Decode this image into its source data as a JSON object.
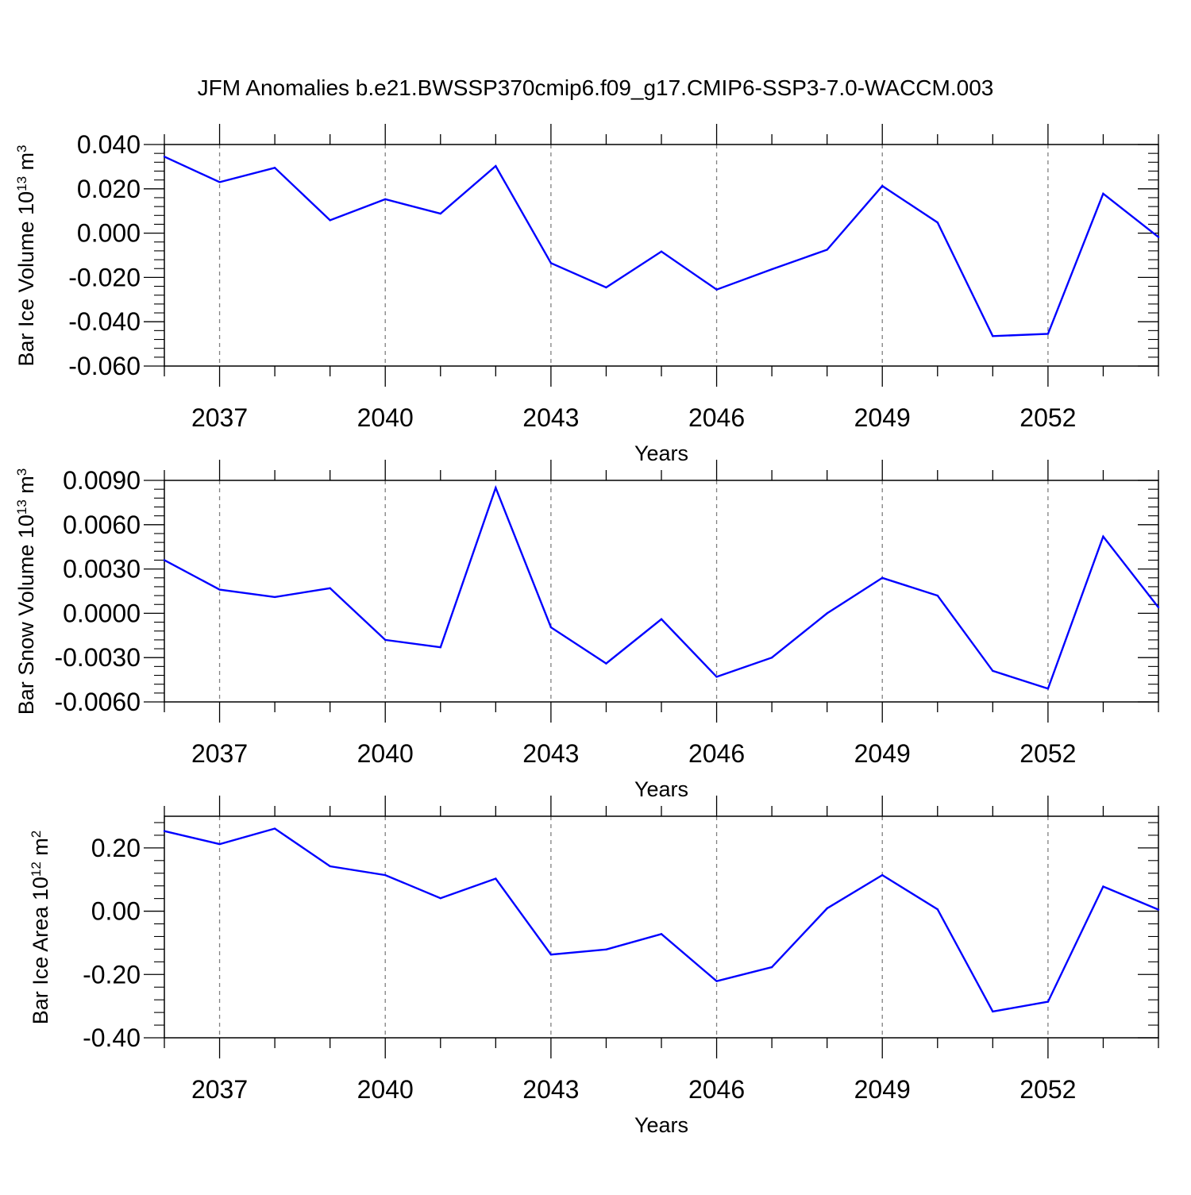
{
  "title": "JFM Anomalies b.e21.BWSSP370cmip6.f09_g17.CMIP6-SSP3-7.0-WACCM.003",
  "colors": {
    "series": "#0000ff",
    "axis": "#000000",
    "grid": "#808080"
  },
  "chart_data": [
    {
      "type": "line",
      "ylabel": {
        "text": "Bar Ice Volume 10",
        "sup1": "13",
        "mid": " m",
        "sup2": "3"
      },
      "xlabel": "Years",
      "xlim": [
        2036,
        2054
      ],
      "ylim": [
        -0.06,
        0.04
      ],
      "xticks": [
        2037,
        2040,
        2043,
        2046,
        2049,
        2052
      ],
      "xtick_labels": [
        "2037",
        "2040",
        "2043",
        "2046",
        "2049",
        "2052"
      ],
      "yticks": [
        -0.06,
        -0.04,
        -0.02,
        0.0,
        0.02,
        0.04
      ],
      "ytick_labels": [
        "-0.060",
        "-0.040",
        "-0.020",
        "0.000",
        "0.020",
        "0.040"
      ],
      "grid": "vertical dashed at labeled x ticks",
      "x": [
        2036,
        2037,
        2038,
        2039,
        2040,
        2041,
        2042,
        2043,
        2044,
        2045,
        2046,
        2047,
        2048,
        2049,
        2050,
        2051,
        2052,
        2053,
        2054
      ],
      "y": [
        0.0345,
        0.023,
        0.0295,
        0.0058,
        0.0153,
        0.0088,
        0.0303,
        -0.0135,
        -0.0245,
        -0.0083,
        -0.0255,
        -0.0163,
        -0.0075,
        0.0213,
        0.0048,
        -0.0465,
        -0.0455,
        0.0178,
        -0.0018
      ]
    },
    {
      "type": "line",
      "ylabel": {
        "text": "Bar Snow Volume 10",
        "sup1": "13",
        "mid": " m",
        "sup2": "3"
      },
      "xlabel": "Years",
      "xlim": [
        2036,
        2054
      ],
      "ylim": [
        -0.006,
        0.009
      ],
      "xticks": [
        2037,
        2040,
        2043,
        2046,
        2049,
        2052
      ],
      "xtick_labels": [
        "2037",
        "2040",
        "2043",
        "2046",
        "2049",
        "2052"
      ],
      "yticks": [
        -0.006,
        -0.003,
        0.0,
        0.003,
        0.006,
        0.009
      ],
      "ytick_labels": [
        "-0.0060",
        "-0.0030",
        "0.0000",
        "0.0030",
        "0.0060",
        "0.0090"
      ],
      "grid": "vertical dashed at labeled x ticks",
      "x": [
        2036,
        2037,
        2038,
        2039,
        2040,
        2041,
        2042,
        2043,
        2044,
        2045,
        2046,
        2047,
        2048,
        2049,
        2050,
        2051,
        2052,
        2053,
        2054
      ],
      "y": [
        0.0036,
        0.0016,
        0.0011,
        0.0017,
        -0.0018,
        -0.0023,
        0.0085,
        -0.00095,
        -0.0034,
        -0.0004,
        -0.0043,
        -0.003,
        0.0,
        0.0024,
        0.0012,
        -0.0039,
        -0.0051,
        0.0052,
        0.0004
      ]
    },
    {
      "type": "line",
      "ylabel": {
        "text": "Bar Ice Area 10",
        "sup1": "12",
        "mid": " m",
        "sup2": "2"
      },
      "xlabel": "Years",
      "xlim": [
        2036,
        2054
      ],
      "ylim": [
        -0.4,
        0.3
      ],
      "xticks": [
        2037,
        2040,
        2043,
        2046,
        2049,
        2052
      ],
      "xtick_labels": [
        "2037",
        "2040",
        "2043",
        "2046",
        "2049",
        "2052"
      ],
      "yticks": [
        -0.4,
        -0.2,
        0.0,
        0.2
      ],
      "ytick_labels": [
        "-0.40",
        "-0.20",
        "0.00",
        "0.20"
      ],
      "grid": "vertical dashed at labeled x ticks",
      "x": [
        2036,
        2037,
        2038,
        2039,
        2040,
        2041,
        2042,
        2043,
        2044,
        2045,
        2046,
        2047,
        2048,
        2049,
        2050,
        2051,
        2052,
        2053,
        2054
      ],
      "y": [
        0.253,
        0.212,
        0.261,
        0.142,
        0.114,
        0.041,
        0.103,
        -0.137,
        -0.121,
        -0.072,
        -0.221,
        -0.177,
        0.009,
        0.114,
        0.006,
        -0.317,
        -0.286,
        0.078,
        0.005
      ]
    }
  ]
}
